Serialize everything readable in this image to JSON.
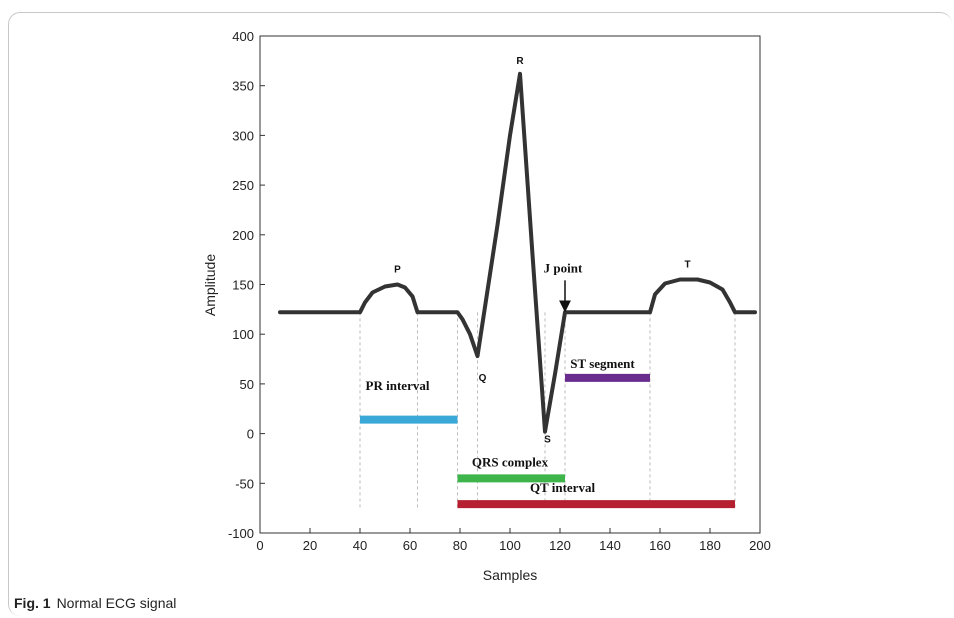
{
  "caption": {
    "label": "Fig. 1",
    "text": "Normal ECG signal"
  },
  "chart_data": {
    "type": "line",
    "title": "",
    "xlabel": "Samples",
    "ylabel": "Amplitude",
    "xlim": [
      0,
      200
    ],
    "ylim": [
      -100,
      400
    ],
    "xticks": [
      0,
      20,
      40,
      60,
      80,
      100,
      120,
      140,
      160,
      180,
      200
    ],
    "yticks": [
      -100,
      -50,
      0,
      50,
      100,
      150,
      200,
      250,
      300,
      350,
      400
    ],
    "grid": false,
    "series": [
      {
        "color": "#333333",
        "points": [
          [
            8,
            122
          ],
          [
            40,
            122
          ],
          [
            42,
            132
          ],
          [
            45,
            142
          ],
          [
            50,
            148
          ],
          [
            55,
            150
          ],
          [
            58,
            147
          ],
          [
            61,
            138
          ],
          [
            63,
            122
          ],
          [
            79,
            122
          ],
          [
            81,
            115
          ],
          [
            84,
            100
          ],
          [
            87,
            78
          ],
          [
            95,
            210
          ],
          [
            100,
            300
          ],
          [
            104,
            362
          ],
          [
            109,
            180
          ],
          [
            114,
            2
          ],
          [
            118,
            60
          ],
          [
            122,
            122
          ],
          [
            156,
            122
          ],
          [
            158,
            140
          ],
          [
            162,
            151
          ],
          [
            168,
            155
          ],
          [
            175,
            155
          ],
          [
            180,
            152
          ],
          [
            185,
            145
          ],
          [
            188,
            132
          ],
          [
            190,
            122
          ],
          [
            198,
            122
          ]
        ]
      }
    ],
    "wave_labels": [
      {
        "text": "P",
        "x": 55,
        "y": 162
      },
      {
        "text": "Q",
        "x": 89,
        "y": 53
      },
      {
        "text": "R",
        "x": 104,
        "y": 372
      },
      {
        "text": "S",
        "x": 115,
        "y": -9
      },
      {
        "text": "T",
        "x": 171,
        "y": 167
      }
    ],
    "j_point": {
      "text": "J point",
      "x": 122,
      "y": 122
    },
    "guide_lines": [
      40,
      63,
      79,
      87,
      114,
      122,
      156,
      190
    ],
    "intervals": [
      {
        "name": "PR interval",
        "x_start": 40,
        "x_end": 79,
        "y": 14,
        "color": "#3aa9d8",
        "label_x": 55,
        "label_y": 44
      },
      {
        "name": "ST segment",
        "x_start": 122,
        "x_end": 156,
        "y": 56,
        "color": "#6a2d8e",
        "label_x": 137,
        "label_y": 66
      },
      {
        "name": "QRS complex",
        "x_start": 79,
        "x_end": 122,
        "y": -45,
        "color": "#3db54a",
        "label_x": 100,
        "label_y": -33
      },
      {
        "name": "QT interval",
        "x_start": 79,
        "x_end": 190,
        "y": -71,
        "color": "#b51f2f",
        "label_x": 121,
        "label_y": -59
      }
    ]
  }
}
